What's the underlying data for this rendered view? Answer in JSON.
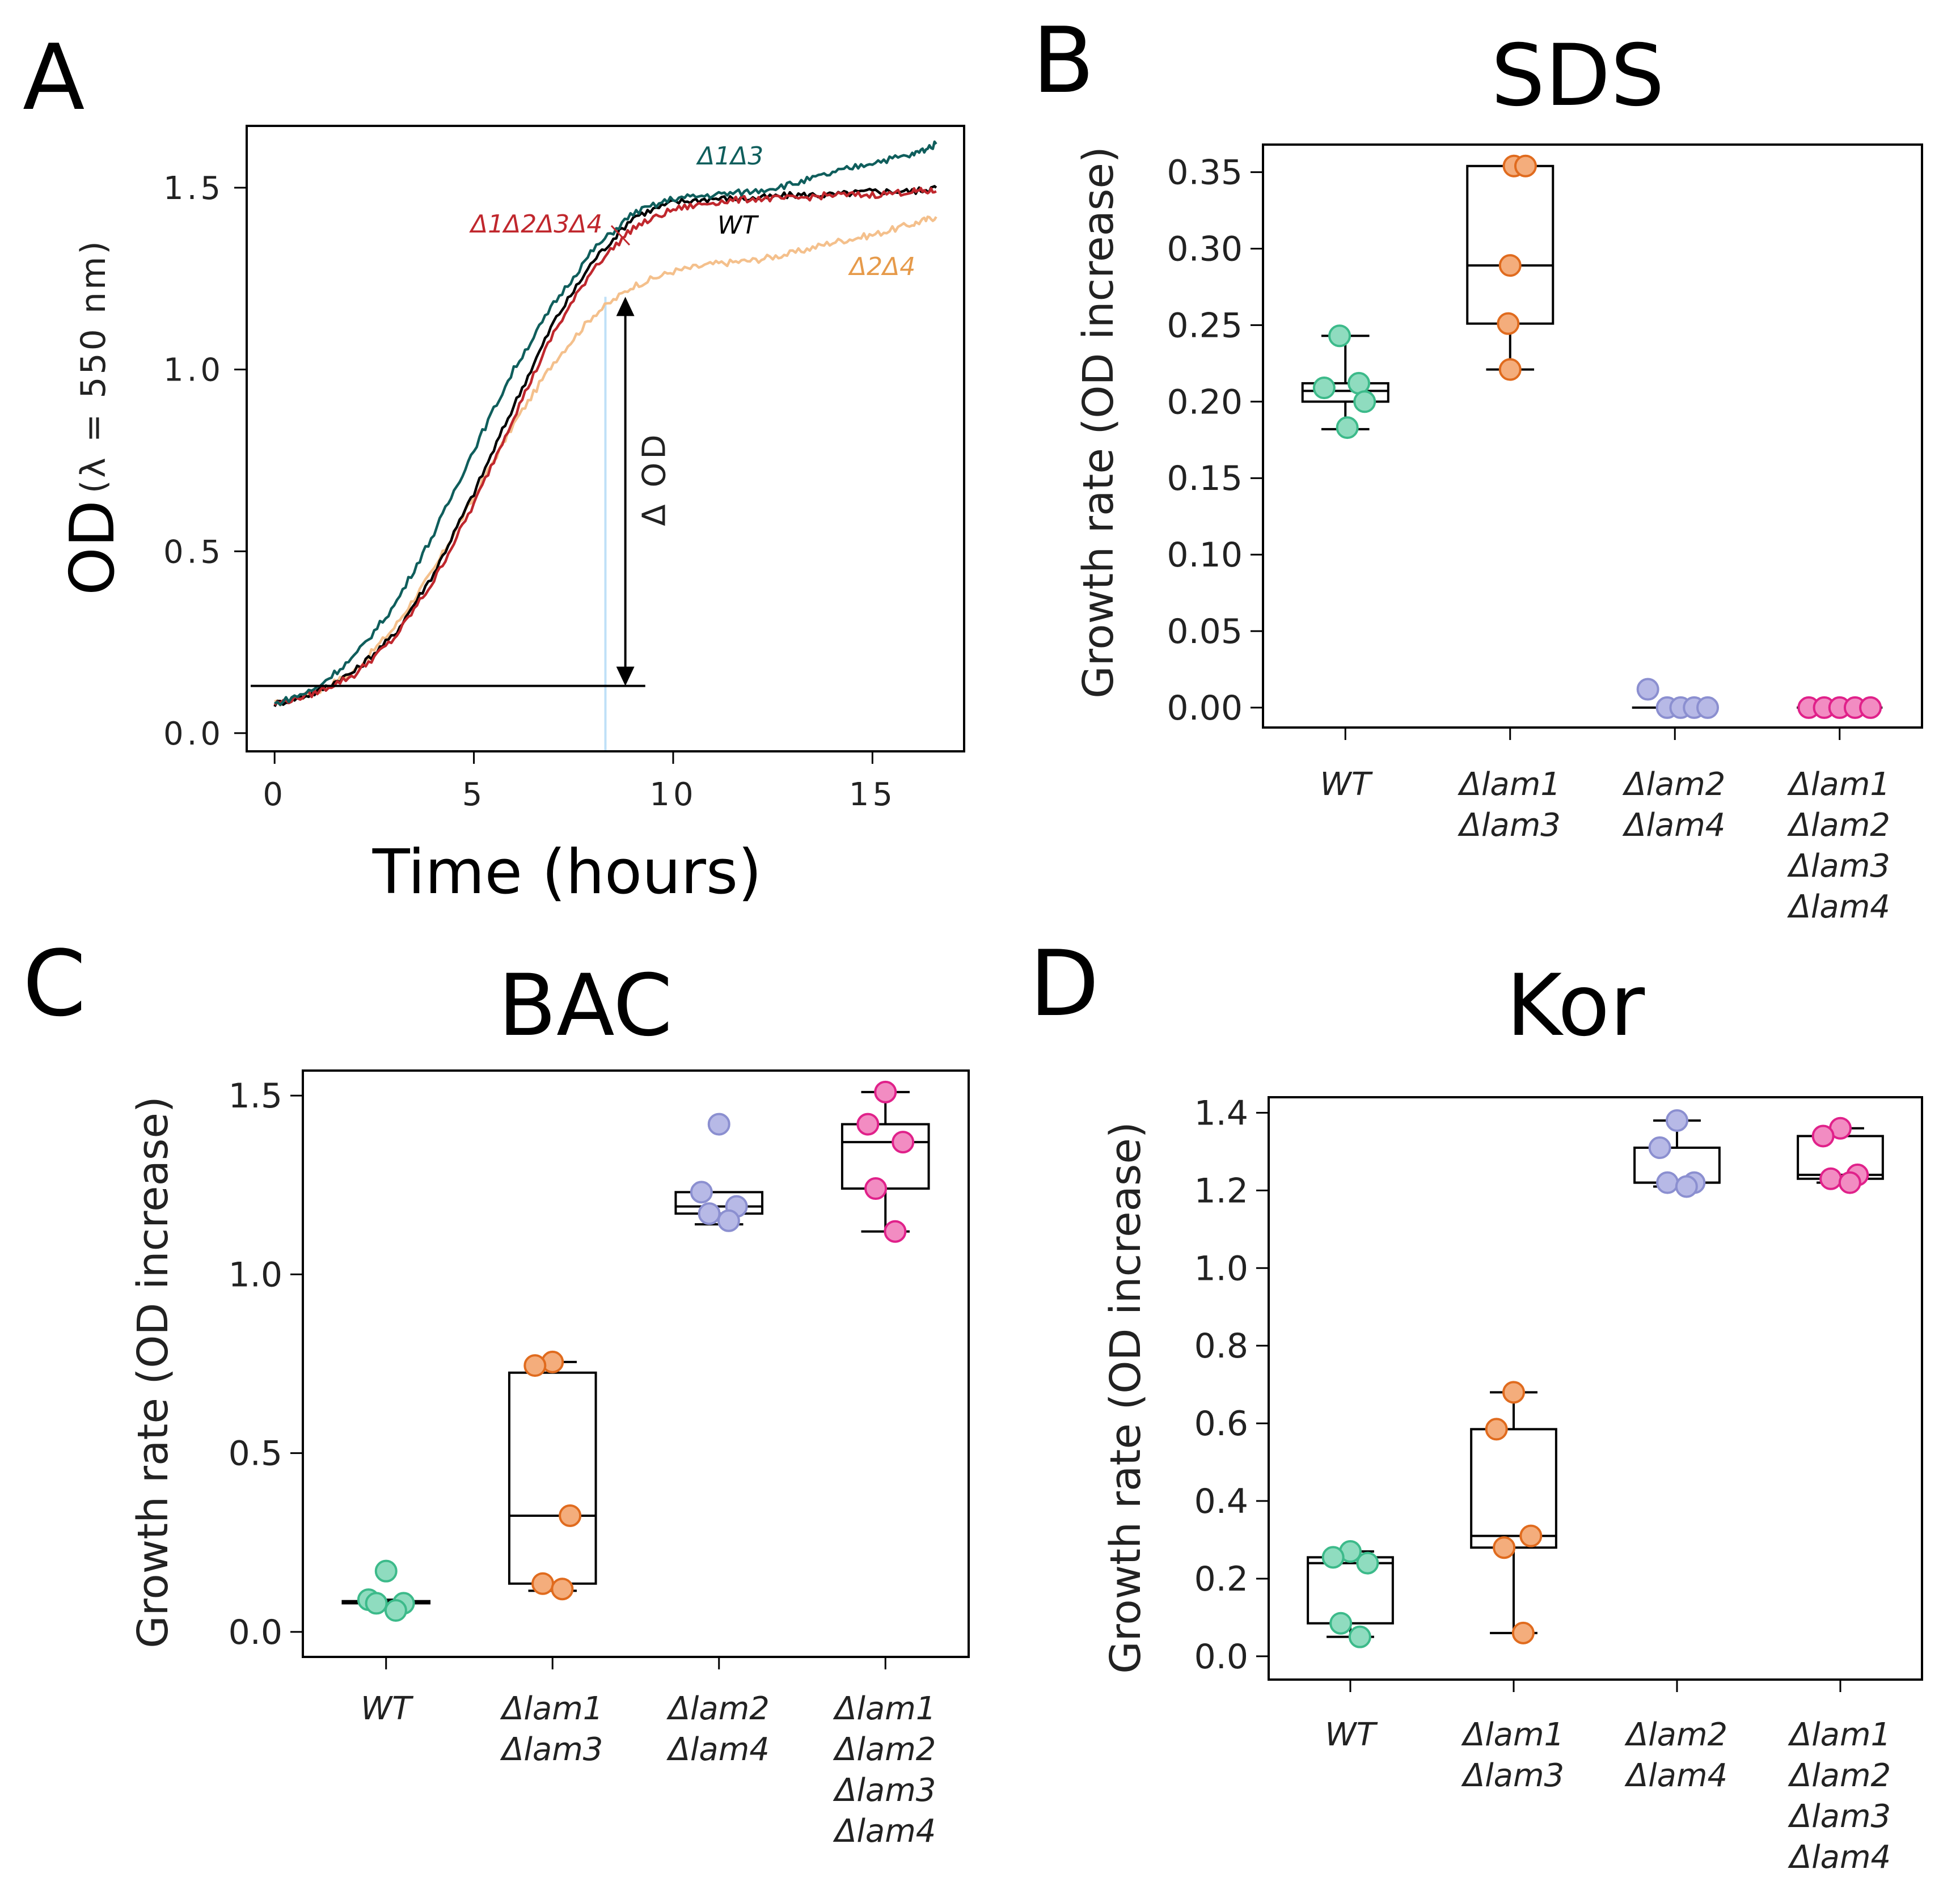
{
  "figure": {
    "panel_labels": [
      "A",
      "B",
      "C",
      "D"
    ]
  },
  "colors": {
    "WT": "#000000",
    "D1D3": "#0f5e5c",
    "D1D2D3D4": "#c0272d",
    "D2D4": "#f4c08c",
    "d2d4_label": "#e69a4a",
    "delta_od": "#5aa2d6",
    "vline": "#bfe0f7",
    "green": "#3cba8a",
    "green_fill": "#8fdcbf",
    "orange": "#e06b1e",
    "orange_fill": "#f4ad7c",
    "purple": "#8b8fd0",
    "purple_fill": "#b7b9e6",
    "pink": "#e0218a",
    "pink_fill": "#f28cc2"
  },
  "chart_data": [
    {
      "panel": "A",
      "type": "line",
      "title": "",
      "xlabel": "Time (hours)",
      "ylabel_main": "OD",
      "ylabel_sub": "(λ = 550 nm)",
      "xlim": [
        -0.7,
        17.3
      ],
      "ylim": [
        -0.05,
        1.67
      ],
      "xticks": [
        0,
        5,
        10,
        15
      ],
      "yticks": [
        0.0,
        0.5,
        1.0,
        1.5
      ],
      "xtick_labels": [
        "0",
        "5",
        "10",
        "15"
      ],
      "ytick_labels": [
        "0.0",
        "0.5",
        "1.0",
        "1.5"
      ],
      "x": [
        0,
        1,
        2,
        3,
        4,
        5,
        6,
        7,
        8,
        9,
        10,
        11,
        12,
        13,
        14,
        15,
        16,
        16.6
      ],
      "series": [
        {
          "name": "Δ2Δ4",
          "key": "D2D4",
          "values": [
            0.08,
            0.11,
            0.17,
            0.29,
            0.45,
            0.65,
            0.85,
            1.02,
            1.15,
            1.23,
            1.27,
            1.29,
            1.3,
            1.32,
            1.35,
            1.37,
            1.4,
            1.42
          ]
        },
        {
          "name": "WT",
          "key": "WT",
          "values": [
            0.08,
            0.11,
            0.17,
            0.27,
            0.44,
            0.66,
            0.9,
            1.13,
            1.3,
            1.42,
            1.46,
            1.47,
            1.47,
            1.48,
            1.48,
            1.49,
            1.49,
            1.5
          ]
        },
        {
          "name": "Δ1Δ2Δ3Δ4",
          "key": "D1D2D3D4",
          "values": [
            0.08,
            0.11,
            0.16,
            0.26,
            0.42,
            0.63,
            0.87,
            1.1,
            1.28,
            1.39,
            1.44,
            1.46,
            1.47,
            1.47,
            1.48,
            1.48,
            1.49,
            1.49
          ]
        },
        {
          "name": "Δ1Δ3",
          "key": "D1D3",
          "values": [
            0.08,
            0.12,
            0.21,
            0.35,
            0.55,
            0.78,
            1.0,
            1.18,
            1.33,
            1.43,
            1.47,
            1.48,
            1.49,
            1.51,
            1.54,
            1.57,
            1.59,
            1.62
          ]
        }
      ],
      "series_labels": {
        "D1D3": "Δ1Δ3",
        "D1D2D3D4": "Δ1Δ2Δ3Δ4",
        "WT": "WT",
        "D2D4": "Δ2Δ4"
      },
      "annotations": {
        "baseline_y": 0.13,
        "baseline_x_range": [
          -0.6,
          9.3
        ],
        "arrow_x": 8.8,
        "arrow_y_range": [
          0.13,
          1.2
        ],
        "vline_x": 8.3,
        "delta_od_label": "Δ OD"
      }
    },
    {
      "panel": "B",
      "type": "box",
      "title": "SDS",
      "ylabel": "Growth rate (OD increase)",
      "ylim": [
        -0.013,
        0.368
      ],
      "yticks": [
        0.0,
        0.05,
        0.1,
        0.15,
        0.2,
        0.25,
        0.3,
        0.35
      ],
      "ytick_labels": [
        "0.00",
        "0.05",
        "0.10",
        "0.15",
        "0.20",
        "0.25",
        "0.30",
        "0.35"
      ],
      "categories": [
        [
          "WT"
        ],
        [
          "Δlam1",
          "Δlam3"
        ],
        [
          "Δlam2",
          "Δlam4"
        ],
        [
          "Δlam1",
          "Δlam2",
          "Δlam3",
          "Δlam4"
        ]
      ],
      "groups": [
        {
          "color": "green",
          "q1": 0.2,
          "median": 0.207,
          "q3": 0.212,
          "whislo": 0.182,
          "whishi": 0.243,
          "points": [
            0.243,
            0.212,
            0.209,
            0.2,
            0.183
          ]
        },
        {
          "color": "orange",
          "q1": 0.251,
          "median": 0.289,
          "q3": 0.354,
          "whislo": 0.221,
          "whishi": 0.354,
          "points": [
            0.354,
            0.354,
            0.289,
            0.251,
            0.221
          ]
        },
        {
          "color": "purple",
          "q1": 0.0,
          "median": 0.0,
          "q3": 0.0,
          "whislo": 0.0,
          "whishi": 0.0,
          "points": [
            0.012,
            0.0,
            0.0,
            0.0,
            0.0
          ]
        },
        {
          "color": "pink",
          "q1": 0.0,
          "median": 0.0,
          "q3": 0.0,
          "whislo": 0.0,
          "whishi": 0.0,
          "points": [
            0.0,
            0.0,
            0.0,
            0.0,
            0.0
          ]
        }
      ]
    },
    {
      "panel": "C",
      "type": "box",
      "title": "BAC",
      "ylabel": "Growth rate (OD increase)",
      "ylim": [
        -0.07,
        1.57
      ],
      "yticks": [
        0.0,
        0.5,
        1.0,
        1.5
      ],
      "ytick_labels": [
        "0.0",
        "0.5",
        "1.0",
        "1.5"
      ],
      "categories": [
        [
          "WT"
        ],
        [
          "Δlam1",
          "Δlam3"
        ],
        [
          "Δlam2",
          "Δlam4"
        ],
        [
          "Δlam1",
          "Δlam2",
          "Δlam3",
          "Δlam4"
        ]
      ],
      "groups": [
        {
          "color": "green",
          "q1": 0.08,
          "median": 0.082,
          "q3": 0.086,
          "whislo": 0.075,
          "whishi": 0.09,
          "points": [
            0.17,
            0.09,
            0.08,
            0.08,
            0.06
          ]
        },
        {
          "color": "orange",
          "q1": 0.135,
          "median": 0.325,
          "q3": 0.725,
          "whislo": 0.115,
          "whishi": 0.755,
          "points": [
            0.755,
            0.745,
            0.325,
            0.135,
            0.12
          ]
        },
        {
          "color": "purple",
          "q1": 1.17,
          "median": 1.19,
          "q3": 1.23,
          "whislo": 1.14,
          "whishi": 1.23,
          "points": [
            1.42,
            1.23,
            1.19,
            1.17,
            1.15
          ]
        },
        {
          "color": "pink",
          "q1": 1.24,
          "median": 1.37,
          "q3": 1.42,
          "whislo": 1.12,
          "whishi": 1.51,
          "points": [
            1.51,
            1.42,
            1.37,
            1.24,
            1.12
          ]
        }
      ]
    },
    {
      "panel": "D",
      "type": "box",
      "title": "Kor",
      "ylabel": "Growth rate (OD increase)",
      "ylim": [
        -0.06,
        1.44
      ],
      "yticks": [
        0.0,
        0.2,
        0.4,
        0.6,
        0.8,
        1.0,
        1.2,
        1.4
      ],
      "ytick_labels": [
        "0.0",
        "0.2",
        "0.4",
        "0.6",
        "0.8",
        "1.0",
        "1.2",
        "1.4"
      ],
      "categories": [
        [
          "WT"
        ],
        [
          "Δlam1",
          "Δlam3"
        ],
        [
          "Δlam2",
          "Δlam4"
        ],
        [
          "Δlam1",
          "Δlam2",
          "Δlam3",
          "Δlam4"
        ]
      ],
      "groups": [
        {
          "color": "green",
          "q1": 0.085,
          "median": 0.24,
          "q3": 0.255,
          "whislo": 0.05,
          "whishi": 0.27,
          "points": [
            0.27,
            0.255,
            0.24,
            0.085,
            0.05
          ]
        },
        {
          "color": "orange",
          "q1": 0.28,
          "median": 0.31,
          "q3": 0.585,
          "whislo": 0.06,
          "whishi": 0.68,
          "points": [
            0.68,
            0.585,
            0.31,
            0.28,
            0.06
          ]
        },
        {
          "color": "purple",
          "q1": 1.22,
          "median": 1.22,
          "q3": 1.31,
          "whislo": 1.21,
          "whishi": 1.38,
          "points": [
            1.38,
            1.31,
            1.22,
            1.22,
            1.21
          ]
        },
        {
          "color": "pink",
          "q1": 1.23,
          "median": 1.24,
          "q3": 1.34,
          "whislo": 1.22,
          "whishi": 1.36,
          "points": [
            1.36,
            1.34,
            1.24,
            1.23,
            1.22
          ]
        }
      ]
    }
  ]
}
